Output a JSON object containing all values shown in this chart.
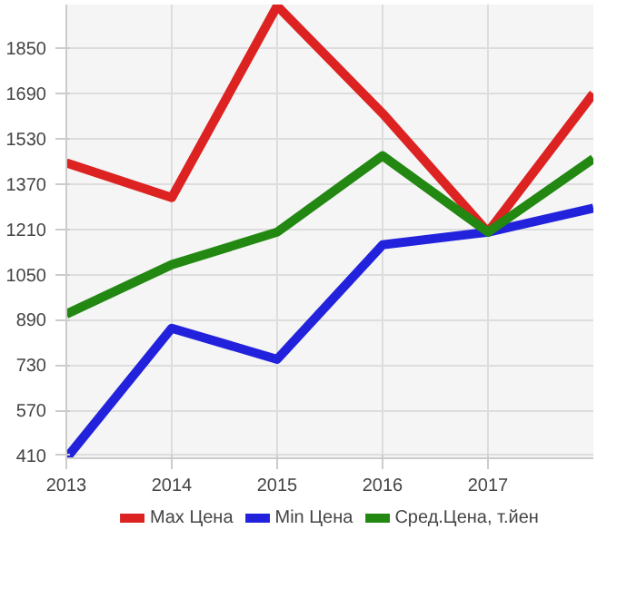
{
  "chart_data": {
    "type": "line",
    "x": [
      2013,
      2014,
      2015,
      2016,
      2017,
      2018
    ],
    "series": [
      {
        "name": "Max Цена",
        "color": "#dd2222",
        "values": [
          1445,
          1322,
          2000,
          1620,
          1200,
          1690
        ]
      },
      {
        "name": "Min Цена",
        "color": "#2222dd",
        "values": [
          400,
          860,
          750,
          1155,
          1200,
          1285
        ]
      },
      {
        "name": "Сред.Цена, т.йен",
        "color": "#228811",
        "values": [
          910,
          1085,
          1200,
          1470,
          1200,
          1460
        ]
      }
    ],
    "xlim": [
      2013,
      2018
    ],
    "ylim": [
      400,
      2005
    ],
    "xticks": [
      2013,
      2014,
      2015,
      2016,
      2017
    ],
    "yticks": [
      410,
      570,
      730,
      890,
      1050,
      1210,
      1370,
      1530,
      1690,
      1850
    ],
    "grid": true,
    "legend": "bottom",
    "marker": "none",
    "line_style": "solid"
  }
}
